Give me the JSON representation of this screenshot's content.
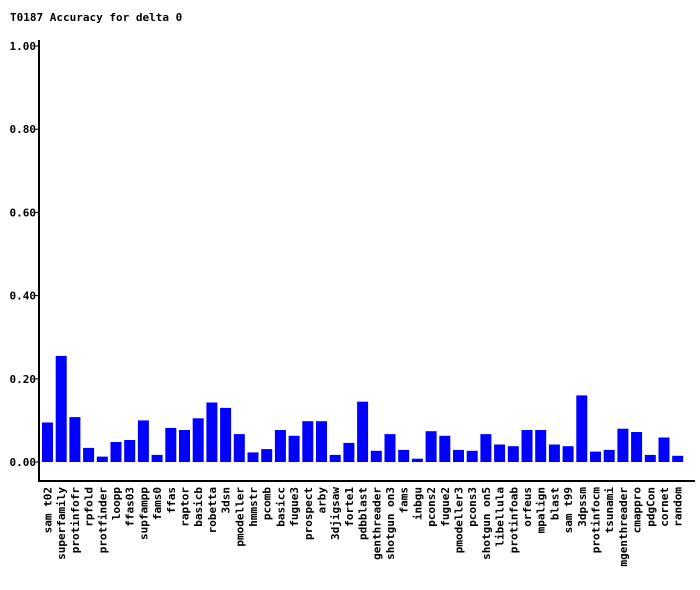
{
  "chart_data": {
    "type": "bar",
    "title": "T0187 Accuracy for delta 0",
    "xlabel": "",
    "ylabel": "",
    "ylim": [
      0,
      1.0
    ],
    "yticks": [
      "0.00",
      "0.20",
      "0.40",
      "0.60",
      "0.80",
      "1.00"
    ],
    "ytick_values": [
      0,
      0.2,
      0.4,
      0.6,
      0.8,
      1.0
    ],
    "grid": false,
    "bar_color": "#0000ff",
    "categories": [
      "sam t02",
      "superfamily",
      "protinfofr",
      "rpfold",
      "protfinder",
      "loopp",
      "ffas03",
      "supfampp",
      "fams0",
      "ffas",
      "raptor",
      "basicb",
      "robetta",
      "3dsn",
      "pmodeller",
      "hmmstr",
      "pcomb",
      "basicc",
      "fugue3",
      "prospect",
      "arby",
      "3djigsaw",
      "forte1",
      "pdbblast",
      "genthreader",
      "shotgun on3",
      "fams",
      "inbgu",
      "pcons2",
      "fugue2",
      "pmodeller3",
      "pcons3",
      "shotgun on5",
      "libellula",
      "protinfoab",
      "orfeus",
      "mpalign",
      "blast",
      "sam t99",
      "3dpssm",
      "protinfocm",
      "tsunami",
      "mgenthreader",
      "cmappro",
      "pdgCon",
      "cornet",
      "random"
    ],
    "values": [
      0.095,
      0.255,
      0.108,
      0.034,
      0.013,
      0.048,
      0.053,
      0.1,
      0.017,
      0.082,
      0.077,
      0.105,
      0.143,
      0.13,
      0.067,
      0.023,
      0.031,
      0.077,
      0.063,
      0.098,
      0.098,
      0.017,
      0.046,
      0.145,
      0.027,
      0.067,
      0.029,
      0.008,
      0.074,
      0.063,
      0.029,
      0.027,
      0.067,
      0.042,
      0.038,
      0.077,
      0.077,
      0.042,
      0.038,
      0.16,
      0.025,
      0.029,
      0.08,
      0.072,
      0.017,
      0.059,
      0.015
    ]
  }
}
